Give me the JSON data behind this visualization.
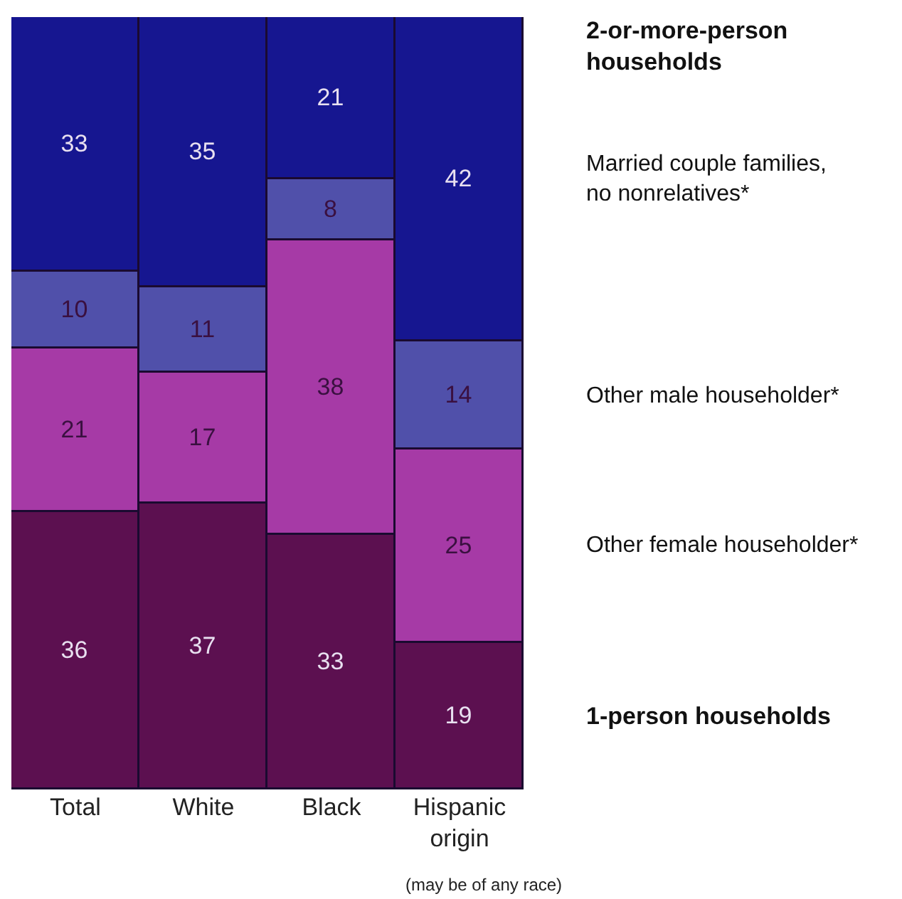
{
  "chart_data": {
    "type": "bar",
    "stacked": true,
    "data_labels": true,
    "tick_labels": "x",
    "legend": false,
    "categories": [
      "Total",
      "White",
      "Black",
      "Hispanic origin"
    ],
    "ylim": [
      0,
      100
    ],
    "series": [
      {
        "name": "1-person households",
        "color": "#5c1050",
        "values": [
          36,
          37,
          33,
          19
        ]
      },
      {
        "name": "Other female householder*",
        "color": "#a63aa6",
        "values": [
          21,
          17,
          38,
          25
        ]
      },
      {
        "name": "Other male householder*",
        "color": "#5050aa",
        "values": [
          10,
          11,
          8,
          14
        ]
      },
      {
        "name": "Married couple families, no nonrelatives*",
        "color": "#161690",
        "values": [
          33,
          35,
          21,
          42
        ]
      }
    ],
    "annotations": [
      "2-or-more-person households",
      "(may be of any race)"
    ]
  }
}
